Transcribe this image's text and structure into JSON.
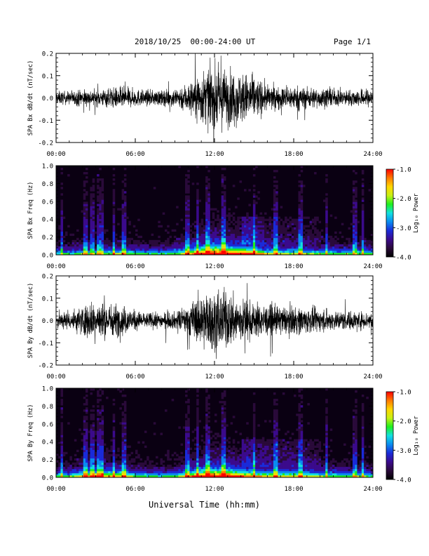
{
  "header": {
    "date_range": "2018/10/25  00:00-24:00 UT",
    "page": "Page 1/1"
  },
  "footer": {
    "xlabel": "Universal Time (hh:mm)"
  },
  "colors": {
    "trace": "#000000",
    "colorbar": [
      "#000000",
      "#2a0a3a",
      "#3b0a8c",
      "#1a2bd9",
      "#0a8cf0",
      "#12e0e0",
      "#1ef01e",
      "#c8f014",
      "#ffd700",
      "#ff7a00",
      "#ff0000"
    ]
  },
  "chart_data": [
    {
      "type": "line",
      "ylabel": "SPA Bx dB/dt (nT/sec)",
      "xlim": [
        0,
        24
      ],
      "ylim": [
        -0.2,
        0.2
      ],
      "xticks": [
        "00:00",
        "06:00",
        "12:00",
        "18:00",
        "24:00"
      ],
      "yticks": [
        "-0.2",
        "-0.1",
        "0.0",
        "0.1",
        "0.2"
      ],
      "yvalues": [
        -0.2,
        -0.1,
        0.0,
        0.1,
        0.2
      ],
      "envelope": {
        "hour": [
          0,
          1,
          2,
          3,
          4,
          5,
          6,
          7,
          8,
          9,
          10,
          11,
          12,
          13,
          14,
          15,
          16,
          17,
          18,
          19,
          20,
          21,
          22,
          23,
          24
        ],
        "amplitude": [
          0.03,
          0.03,
          0.04,
          0.035,
          0.045,
          0.05,
          0.04,
          0.035,
          0.035,
          0.045,
          0.07,
          0.12,
          0.14,
          0.13,
          0.12,
          0.1,
          0.06,
          0.05,
          0.055,
          0.05,
          0.045,
          0.04,
          0.035,
          0.04,
          0.04
        ]
      }
    },
    {
      "type": "heatmap",
      "ylabel": "SPA Bx Freq (Hz)",
      "xlim": [
        0,
        24
      ],
      "ylim": [
        0.0,
        1.0
      ],
      "xticks": [
        "00:00",
        "06:00",
        "12:00",
        "18:00",
        "24:00"
      ],
      "yticks": [
        "0.0",
        "0.2",
        "0.4",
        "0.6",
        "0.8",
        "1.0"
      ],
      "yvalues": [
        0.0,
        0.2,
        0.4,
        0.6,
        0.8,
        1.0
      ],
      "colorbar": {
        "label": "Log₁₀ Power",
        "range": [
          -4.0,
          -1.0
        ],
        "ticks": [
          "-1.0",
          "-2.0",
          "-3.0",
          "-4.0"
        ],
        "tick_values": [
          -1.0,
          -2.0,
          -3.0,
          -4.0
        ]
      },
      "bright_columns_hour": [
        0.4,
        2.2,
        2.7,
        3.2,
        3.4,
        4.4,
        5.1,
        9.9,
        10.7,
        11.5,
        12.7,
        15.0,
        16.6,
        18.5,
        20.5,
        22.6,
        23.2
      ]
    },
    {
      "type": "line",
      "ylabel": "SPA By dB/dt (nT/sec)",
      "xlim": [
        0,
        24
      ],
      "ylim": [
        -0.2,
        0.2
      ],
      "xticks": [
        "00:00",
        "06:00",
        "12:00",
        "18:00",
        "24:00"
      ],
      "yticks": [
        "-0.2",
        "-0.1",
        "0.0",
        "0.1",
        "0.2"
      ],
      "yvalues": [
        -0.2,
        -0.1,
        0.0,
        0.1,
        0.2
      ],
      "envelope": {
        "hour": [
          0,
          1,
          2,
          3,
          4,
          5,
          6,
          7,
          8,
          9,
          10,
          11,
          12,
          13,
          14,
          15,
          16,
          17,
          18,
          19,
          20,
          21,
          22,
          23,
          24
        ],
        "amplitude": [
          0.04,
          0.04,
          0.07,
          0.09,
          0.08,
          0.07,
          0.045,
          0.035,
          0.035,
          0.04,
          0.07,
          0.12,
          0.14,
          0.13,
          0.1,
          0.08,
          0.07,
          0.065,
          0.065,
          0.06,
          0.05,
          0.045,
          0.045,
          0.04,
          0.04
        ]
      }
    },
    {
      "type": "heatmap",
      "ylabel": "SPA By Freq (Hz)",
      "xlim": [
        0,
        24
      ],
      "ylim": [
        0.0,
        1.0
      ],
      "xticks": [
        "00:00",
        "06:00",
        "12:00",
        "18:00",
        "24:00"
      ],
      "yticks": [
        "0.0",
        "0.2",
        "0.4",
        "0.6",
        "0.8",
        "1.0"
      ],
      "yvalues": [
        0.0,
        0.2,
        0.4,
        0.6,
        0.8,
        1.0
      ],
      "colorbar": {
        "label": "Log₁₀ Power",
        "range": [
          -4.0,
          -1.0
        ],
        "ticks": [
          "-1.0",
          "-2.0",
          "-3.0",
          "-4.0"
        ],
        "tick_values": [
          -1.0,
          -2.0,
          -3.0,
          -4.0
        ]
      },
      "bright_columns_hour": [
        0.4,
        2.2,
        2.7,
        3.2,
        3.4,
        4.4,
        5.1,
        9.9,
        10.7,
        11.5,
        12.7,
        15.0,
        16.6,
        18.5,
        20.5,
        22.6,
        23.2
      ]
    }
  ]
}
